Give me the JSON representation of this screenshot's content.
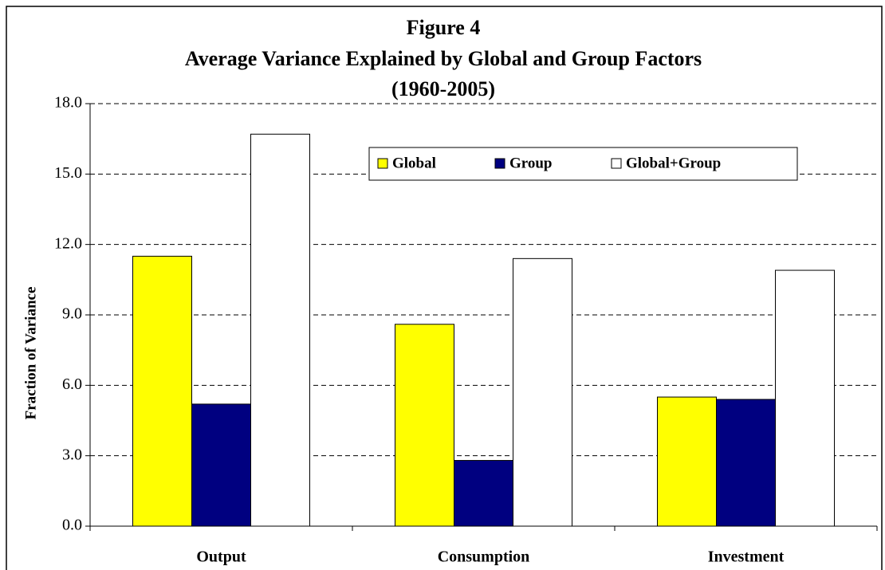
{
  "chart_data": {
    "type": "bar",
    "title": [
      "Figure 4",
      "Average Variance Explained by Global and Group Factors",
      "(1960-2005)"
    ],
    "y_label": "Fraction of Variance",
    "categories": [
      "Output",
      "Consumption",
      "Investment"
    ],
    "series": [
      {
        "name": "Global",
        "color": "#ffff00",
        "values": [
          11.5,
          8.6,
          5.5
        ]
      },
      {
        "name": "Group",
        "color": "#000080",
        "values": [
          5.2,
          2.8,
          5.4
        ]
      },
      {
        "name": "Global+Group",
        "color": "#ffffff",
        "values": [
          16.7,
          11.4,
          10.9
        ]
      }
    ],
    "ylim": [
      0,
      18
    ],
    "yticks": [
      {
        "value": 0,
        "label": "0.0"
      },
      {
        "value": 3,
        "label": "3.0"
      },
      {
        "value": 6,
        "label": "6.0"
      },
      {
        "value": 9,
        "label": "9.0"
      },
      {
        "value": 12,
        "label": "12.0"
      },
      {
        "value": 15,
        "label": "15.0"
      },
      {
        "value": 18,
        "label": "18.0"
      }
    ],
    "grid": true
  }
}
